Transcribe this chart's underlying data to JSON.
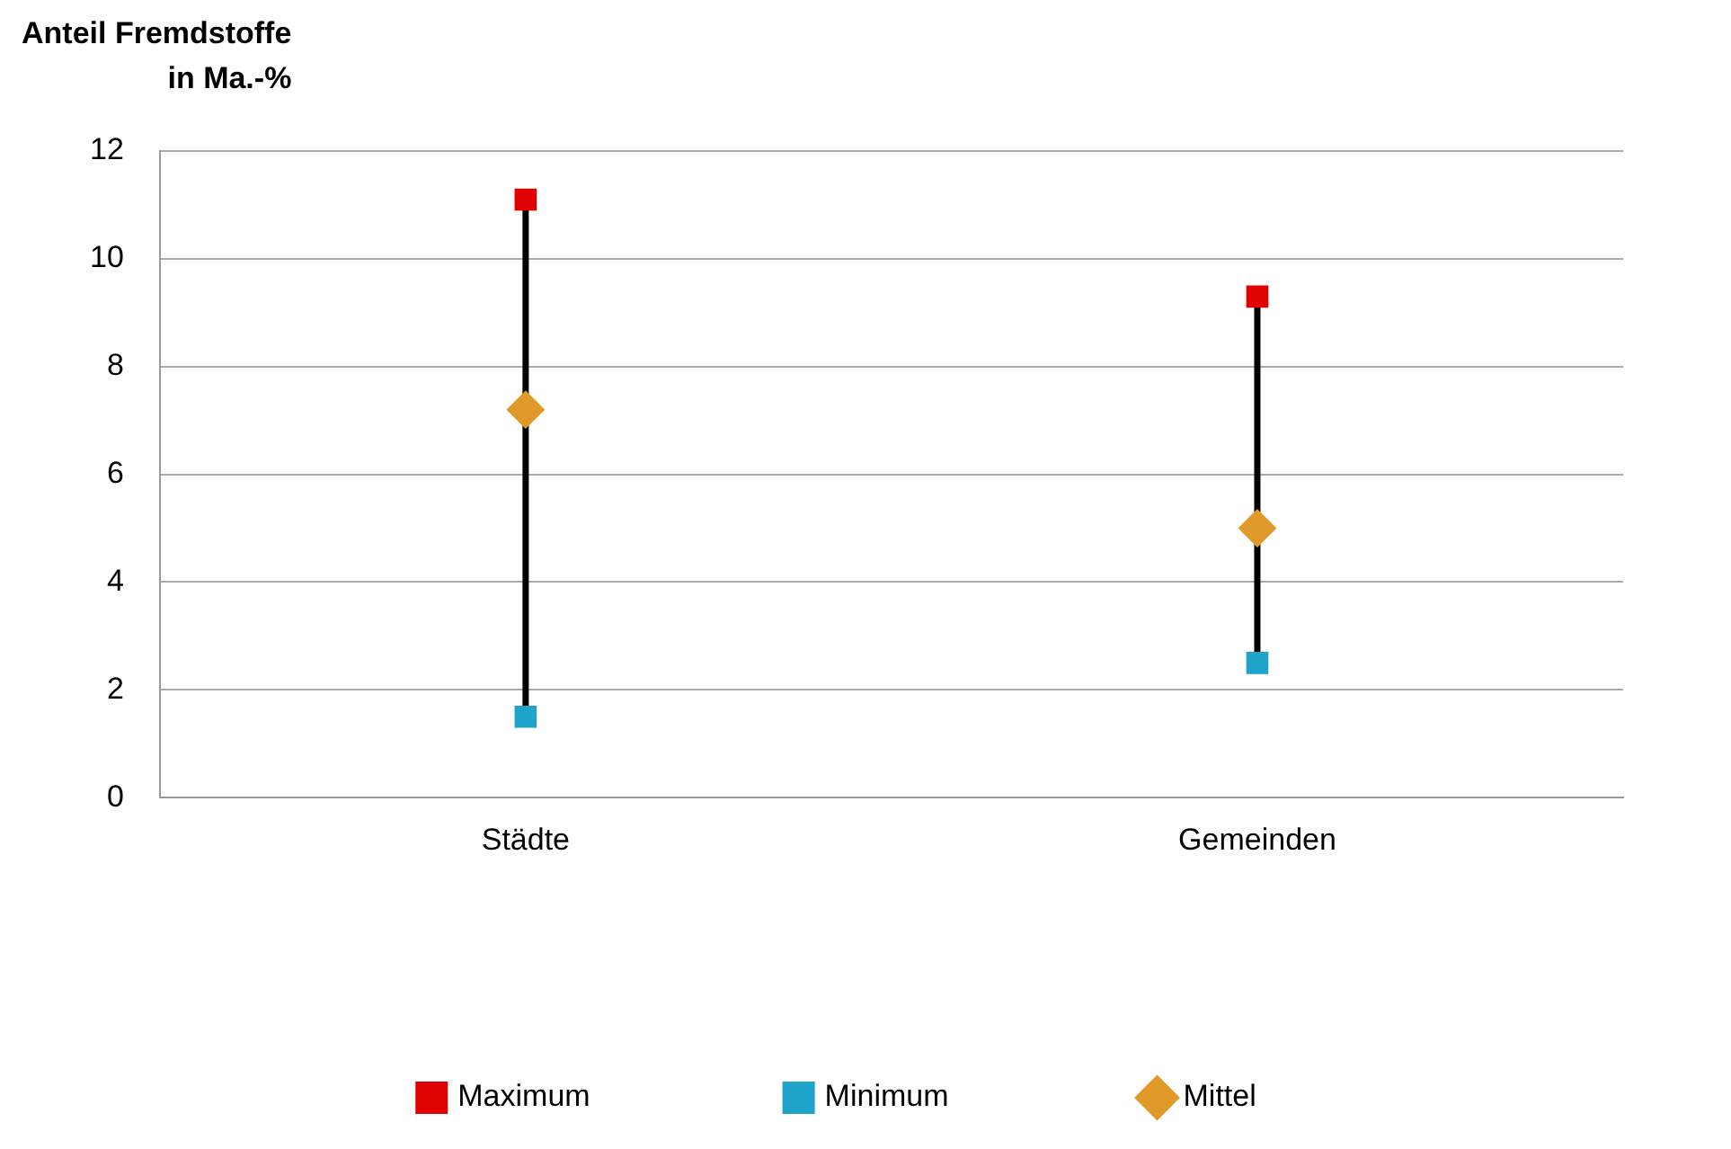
{
  "chart_data": {
    "type": "scatter",
    "ylabel": "Anteil Fremdstoffe\nin Ma.-%",
    "categories": [
      "Städte",
      "Gemeinden"
    ],
    "series": [
      {
        "name": "Maximum",
        "color": "#e00000",
        "marker": "square",
        "values": [
          11.1,
          9.3
        ]
      },
      {
        "name": "Minimum",
        "color": "#1fa3c8",
        "marker": "square",
        "values": [
          1.5,
          2.5
        ]
      },
      {
        "name": "Mittel",
        "color": "#e09a2a",
        "marker": "diamond",
        "values": [
          7.2,
          5.0
        ]
      }
    ],
    "ylim": [
      0,
      12
    ],
    "yticks": [
      0,
      2,
      4,
      6,
      8,
      10,
      12
    ],
    "grid": "y",
    "legend": "bottom"
  }
}
